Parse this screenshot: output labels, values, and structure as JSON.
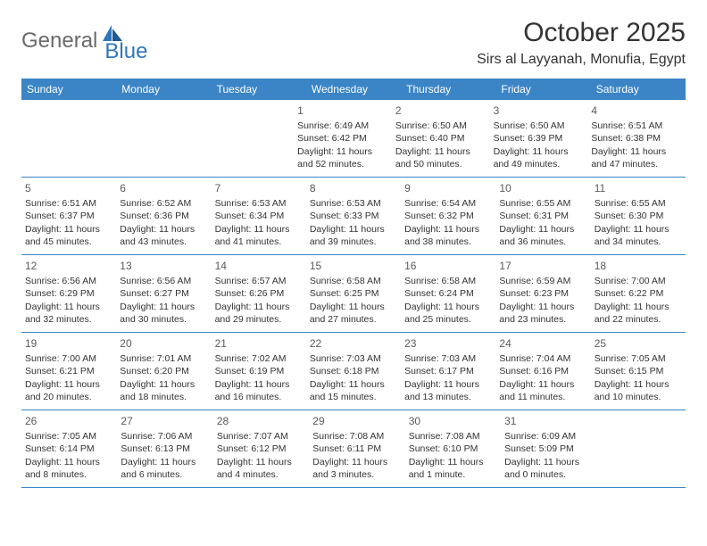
{
  "logo": {
    "text1": "General",
    "text2": "Blue"
  },
  "title": "October 2025",
  "location": "Sirs al Layyanah, Monufia, Egypt",
  "colors": {
    "header_bg": "#3b85c6",
    "header_text": "#ffffff",
    "row_border": "#3b85c6",
    "logo_gray": "#6a6a6a",
    "logo_blue": "#2f76bb",
    "body_text": "#333333",
    "daynum_text": "#5a5a5a",
    "background": "#ffffff"
  },
  "typography": {
    "title_fontsize": 30,
    "location_fontsize": 16,
    "dayheader_fontsize": 12,
    "daynum_fontsize": 12,
    "body_fontsize": 10.5,
    "logo_fontsize": 24
  },
  "day_headers": [
    "Sunday",
    "Monday",
    "Tuesday",
    "Wednesday",
    "Thursday",
    "Friday",
    "Saturday"
  ],
  "weeks": [
    [
      null,
      null,
      null,
      {
        "num": "1",
        "sunrise": "Sunrise: 6:49 AM",
        "sunset": "Sunset: 6:42 PM",
        "daylight1": "Daylight: 11 hours",
        "daylight2": "and 52 minutes."
      },
      {
        "num": "2",
        "sunrise": "Sunrise: 6:50 AM",
        "sunset": "Sunset: 6:40 PM",
        "daylight1": "Daylight: 11 hours",
        "daylight2": "and 50 minutes."
      },
      {
        "num": "3",
        "sunrise": "Sunrise: 6:50 AM",
        "sunset": "Sunset: 6:39 PM",
        "daylight1": "Daylight: 11 hours",
        "daylight2": "and 49 minutes."
      },
      {
        "num": "4",
        "sunrise": "Sunrise: 6:51 AM",
        "sunset": "Sunset: 6:38 PM",
        "daylight1": "Daylight: 11 hours",
        "daylight2": "and 47 minutes."
      }
    ],
    [
      {
        "num": "5",
        "sunrise": "Sunrise: 6:51 AM",
        "sunset": "Sunset: 6:37 PM",
        "daylight1": "Daylight: 11 hours",
        "daylight2": "and 45 minutes."
      },
      {
        "num": "6",
        "sunrise": "Sunrise: 6:52 AM",
        "sunset": "Sunset: 6:36 PM",
        "daylight1": "Daylight: 11 hours",
        "daylight2": "and 43 minutes."
      },
      {
        "num": "7",
        "sunrise": "Sunrise: 6:53 AM",
        "sunset": "Sunset: 6:34 PM",
        "daylight1": "Daylight: 11 hours",
        "daylight2": "and 41 minutes."
      },
      {
        "num": "8",
        "sunrise": "Sunrise: 6:53 AM",
        "sunset": "Sunset: 6:33 PM",
        "daylight1": "Daylight: 11 hours",
        "daylight2": "and 39 minutes."
      },
      {
        "num": "9",
        "sunrise": "Sunrise: 6:54 AM",
        "sunset": "Sunset: 6:32 PM",
        "daylight1": "Daylight: 11 hours",
        "daylight2": "and 38 minutes."
      },
      {
        "num": "10",
        "sunrise": "Sunrise: 6:55 AM",
        "sunset": "Sunset: 6:31 PM",
        "daylight1": "Daylight: 11 hours",
        "daylight2": "and 36 minutes."
      },
      {
        "num": "11",
        "sunrise": "Sunrise: 6:55 AM",
        "sunset": "Sunset: 6:30 PM",
        "daylight1": "Daylight: 11 hours",
        "daylight2": "and 34 minutes."
      }
    ],
    [
      {
        "num": "12",
        "sunrise": "Sunrise: 6:56 AM",
        "sunset": "Sunset: 6:29 PM",
        "daylight1": "Daylight: 11 hours",
        "daylight2": "and 32 minutes."
      },
      {
        "num": "13",
        "sunrise": "Sunrise: 6:56 AM",
        "sunset": "Sunset: 6:27 PM",
        "daylight1": "Daylight: 11 hours",
        "daylight2": "and 30 minutes."
      },
      {
        "num": "14",
        "sunrise": "Sunrise: 6:57 AM",
        "sunset": "Sunset: 6:26 PM",
        "daylight1": "Daylight: 11 hours",
        "daylight2": "and 29 minutes."
      },
      {
        "num": "15",
        "sunrise": "Sunrise: 6:58 AM",
        "sunset": "Sunset: 6:25 PM",
        "daylight1": "Daylight: 11 hours",
        "daylight2": "and 27 minutes."
      },
      {
        "num": "16",
        "sunrise": "Sunrise: 6:58 AM",
        "sunset": "Sunset: 6:24 PM",
        "daylight1": "Daylight: 11 hours",
        "daylight2": "and 25 minutes."
      },
      {
        "num": "17",
        "sunrise": "Sunrise: 6:59 AM",
        "sunset": "Sunset: 6:23 PM",
        "daylight1": "Daylight: 11 hours",
        "daylight2": "and 23 minutes."
      },
      {
        "num": "18",
        "sunrise": "Sunrise: 7:00 AM",
        "sunset": "Sunset: 6:22 PM",
        "daylight1": "Daylight: 11 hours",
        "daylight2": "and 22 minutes."
      }
    ],
    [
      {
        "num": "19",
        "sunrise": "Sunrise: 7:00 AM",
        "sunset": "Sunset: 6:21 PM",
        "daylight1": "Daylight: 11 hours",
        "daylight2": "and 20 minutes."
      },
      {
        "num": "20",
        "sunrise": "Sunrise: 7:01 AM",
        "sunset": "Sunset: 6:20 PM",
        "daylight1": "Daylight: 11 hours",
        "daylight2": "and 18 minutes."
      },
      {
        "num": "21",
        "sunrise": "Sunrise: 7:02 AM",
        "sunset": "Sunset: 6:19 PM",
        "daylight1": "Daylight: 11 hours",
        "daylight2": "and 16 minutes."
      },
      {
        "num": "22",
        "sunrise": "Sunrise: 7:03 AM",
        "sunset": "Sunset: 6:18 PM",
        "daylight1": "Daylight: 11 hours",
        "daylight2": "and 15 minutes."
      },
      {
        "num": "23",
        "sunrise": "Sunrise: 7:03 AM",
        "sunset": "Sunset: 6:17 PM",
        "daylight1": "Daylight: 11 hours",
        "daylight2": "and 13 minutes."
      },
      {
        "num": "24",
        "sunrise": "Sunrise: 7:04 AM",
        "sunset": "Sunset: 6:16 PM",
        "daylight1": "Daylight: 11 hours",
        "daylight2": "and 11 minutes."
      },
      {
        "num": "25",
        "sunrise": "Sunrise: 7:05 AM",
        "sunset": "Sunset: 6:15 PM",
        "daylight1": "Daylight: 11 hours",
        "daylight2": "and 10 minutes."
      }
    ],
    [
      {
        "num": "26",
        "sunrise": "Sunrise: 7:05 AM",
        "sunset": "Sunset: 6:14 PM",
        "daylight1": "Daylight: 11 hours",
        "daylight2": "and 8 minutes."
      },
      {
        "num": "27",
        "sunrise": "Sunrise: 7:06 AM",
        "sunset": "Sunset: 6:13 PM",
        "daylight1": "Daylight: 11 hours",
        "daylight2": "and 6 minutes."
      },
      {
        "num": "28",
        "sunrise": "Sunrise: 7:07 AM",
        "sunset": "Sunset: 6:12 PM",
        "daylight1": "Daylight: 11 hours",
        "daylight2": "and 4 minutes."
      },
      {
        "num": "29",
        "sunrise": "Sunrise: 7:08 AM",
        "sunset": "Sunset: 6:11 PM",
        "daylight1": "Daylight: 11 hours",
        "daylight2": "and 3 minutes."
      },
      {
        "num": "30",
        "sunrise": "Sunrise: 7:08 AM",
        "sunset": "Sunset: 6:10 PM",
        "daylight1": "Daylight: 11 hours",
        "daylight2": "and 1 minute."
      },
      {
        "num": "31",
        "sunrise": "Sunrise: 6:09 AM",
        "sunset": "Sunset: 5:09 PM",
        "daylight1": "Daylight: 11 hours",
        "daylight2": "and 0 minutes."
      },
      null
    ]
  ]
}
